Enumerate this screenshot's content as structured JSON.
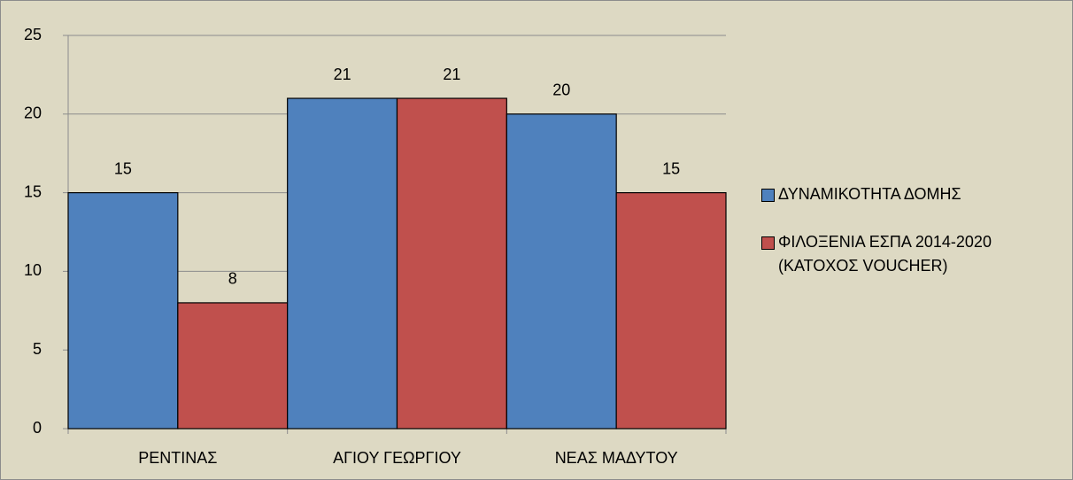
{
  "chart_data": {
    "type": "bar",
    "categories": [
      "ΡΕΝΤΙΝΑΣ",
      "ΑΓΙΟΥ ΓΕΩΡΓΙΟΥ",
      "ΝΕΑΣ ΜΑΔΥΤΟΥ"
    ],
    "series": [
      {
        "name": "ΔΥΝΑΜΙΚΟΤΗΤΑ ΔΟΜΗΣ",
        "color": "#4f81bd",
        "values": [
          15,
          21,
          20
        ]
      },
      {
        "name": "ΦΙΛΟΞΕΝΙΑ ΕΣΠΑ 2014-2020 (ΚΑΤΟΧΟΣ VOUCHER)",
        "color": "#c0504d",
        "values": [
          8,
          21,
          15
        ]
      }
    ],
    "ylim": [
      0,
      25
    ],
    "yticks": [
      0,
      5,
      10,
      15,
      20,
      25
    ],
    "grid": true,
    "legend": "right"
  }
}
